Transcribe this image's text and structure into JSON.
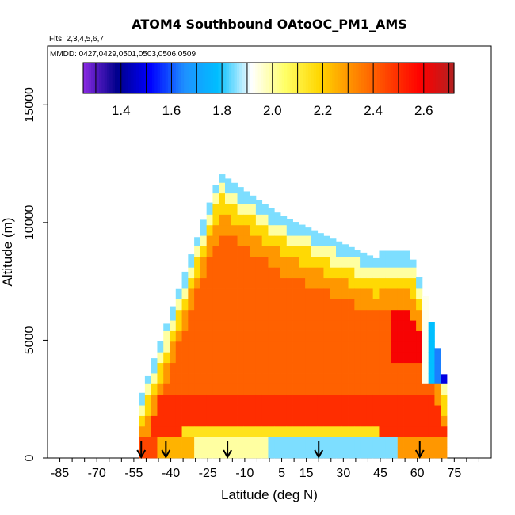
{
  "chart_data": {
    "type": "heatmap",
    "title": "ATOM4 Southbound OAtoOC_PM1_AMS",
    "flights_note": "Flts: 2,3,4,5,6,7",
    "date_note": "MMDD: 0427,0429,0501,0503,0506,0509",
    "xlabel": "Latitude (deg N)",
    "ylabel": "Altitude (m)",
    "xlim": [
      -90,
      90
    ],
    "ylim": [
      0,
      17500
    ],
    "x_ticks": [
      -85,
      -70,
      -55,
      -40,
      -25,
      -10,
      5,
      15,
      30,
      45,
      60,
      75
    ],
    "y_ticks": [
      0,
      5000,
      10000,
      15000
    ],
    "colorbar": {
      "range": [
        1.25,
        2.72
      ],
      "ticks": [
        1.4,
        1.6,
        1.8,
        2.0,
        2.2,
        2.4,
        2.6
      ],
      "ticks_text": [
        "1.4",
        "1.6",
        "1.8",
        "2.0",
        "2.2",
        "2.4",
        "2.6"
      ],
      "colormap": [
        "#8a2be2",
        "#00008b",
        "#0000ff",
        "#1e90ff",
        "#00bfff",
        "#ffffff",
        "#ffff66",
        "#ffd700",
        "#ff8c00",
        "#ff4500",
        "#ff0000",
        "#b22222"
      ]
    },
    "profile_markers_lat": [
      -52,
      -42,
      -17,
      20,
      61
    ],
    "grid": false
  }
}
